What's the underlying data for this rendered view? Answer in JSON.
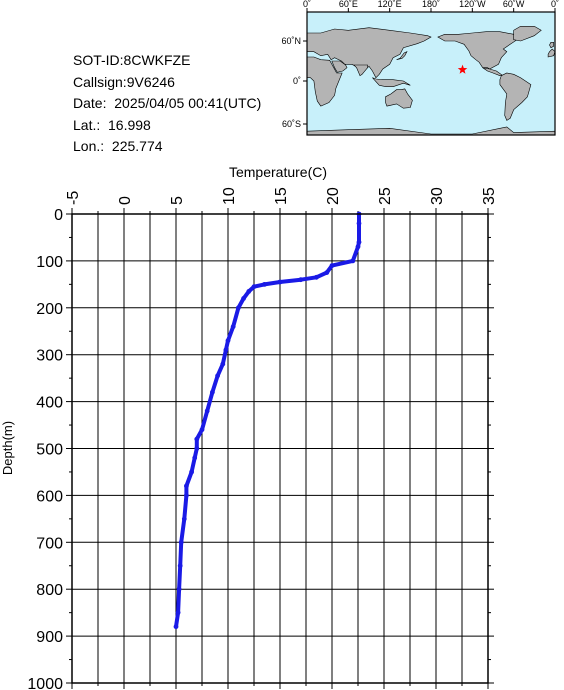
{
  "info": {
    "sot_id": "SOT-ID:8CWKFZE",
    "callsign": "Callsign:9V6246",
    "date": "Date:  2025/04/05 00:41(UTC)",
    "lat": "Lat.:  16.998",
    "lon": "Lon.:  225.774"
  },
  "map": {
    "top_labels": [
      "0˚",
      "60˚E",
      "120˚E",
      "180˚",
      "120˚W",
      "60˚W",
      "0˚"
    ],
    "left_labels": [
      "60˚N",
      "0˚",
      "60˚S"
    ],
    "ocean_color": "#c8f0fa",
    "land_color": "#b4b4b4",
    "marker_color": "#ff0000",
    "marker_icon": "star-icon",
    "marker_lon": 225.774,
    "marker_lat": 16.998
  },
  "chart_data": {
    "type": "line",
    "xlabel": "Temperature(C)",
    "ylabel": "Depth(m)",
    "xlim": [
      -5,
      35
    ],
    "ylim": [
      1000,
      0
    ],
    "x_ticks": [
      "-5",
      "0",
      "5",
      "10",
      "15",
      "20",
      "25",
      "30",
      "35"
    ],
    "y_ticks": [
      "0",
      "100",
      "200",
      "300",
      "400",
      "500",
      "600",
      "700",
      "800",
      "900",
      "1000"
    ],
    "grid": true,
    "line_color": "#1a1ae6",
    "series": [
      {
        "x": [
          22.6,
          22.6,
          22.6,
          22.5,
          22.0,
          20.0,
          19.5,
          18.5,
          17.0,
          15.0,
          13.5,
          12.5,
          12.0,
          11.5,
          11.0,
          10.5,
          10.0,
          9.8,
          9.5,
          9.0,
          8.5,
          8.0,
          7.5,
          7.0,
          7.0,
          6.8,
          6.5,
          6.0,
          6.0,
          5.8,
          5.5,
          5.4,
          5.3,
          5.2,
          5.0
        ],
        "y": [
          0,
          20,
          60,
          70,
          100,
          110,
          125,
          135,
          140,
          145,
          150,
          155,
          165,
          180,
          200,
          240,
          270,
          290,
          320,
          345,
          380,
          420,
          460,
          480,
          500,
          520,
          550,
          580,
          600,
          650,
          700,
          750,
          800,
          850,
          880
        ]
      }
    ]
  }
}
